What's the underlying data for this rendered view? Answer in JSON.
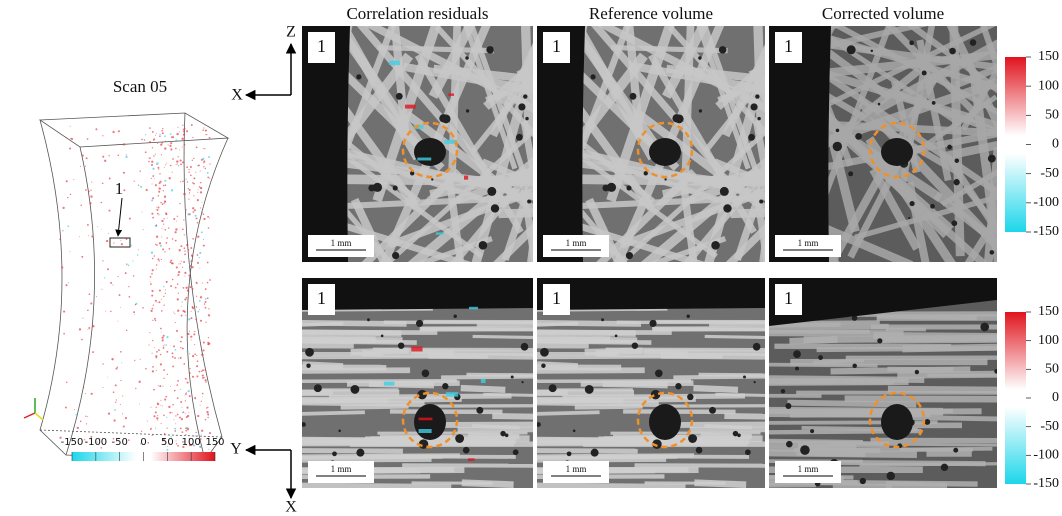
{
  "left": {
    "title": "Scan 05",
    "marker": "1",
    "colorbar_ticks": [
      -150,
      -100,
      -50,
      0,
      50,
      100,
      150
    ]
  },
  "columns": [
    "Correlation residuals",
    "Reference volume",
    "Corrected volume"
  ],
  "rows": [
    {
      "axes": [
        "Z",
        "X"
      ],
      "panels": [
        {
          "marker": "1",
          "scale": "1 mm"
        },
        {
          "marker": "1",
          "scale": "1 mm"
        },
        {
          "marker": "1",
          "scale": "1 mm"
        }
      ],
      "colorbar_ticks": [
        150,
        100,
        50,
        0,
        -50,
        -100,
        -150
      ]
    },
    {
      "axes": [
        "Y",
        "X"
      ],
      "panels": [
        {
          "marker": "1",
          "scale": "1 mm"
        },
        {
          "marker": "1",
          "scale": "1 mm"
        },
        {
          "marker": "1",
          "scale": "1 mm"
        }
      ],
      "colorbar_ticks": [
        150,
        100,
        50,
        0,
        -50,
        -100,
        -150
      ]
    }
  ]
}
